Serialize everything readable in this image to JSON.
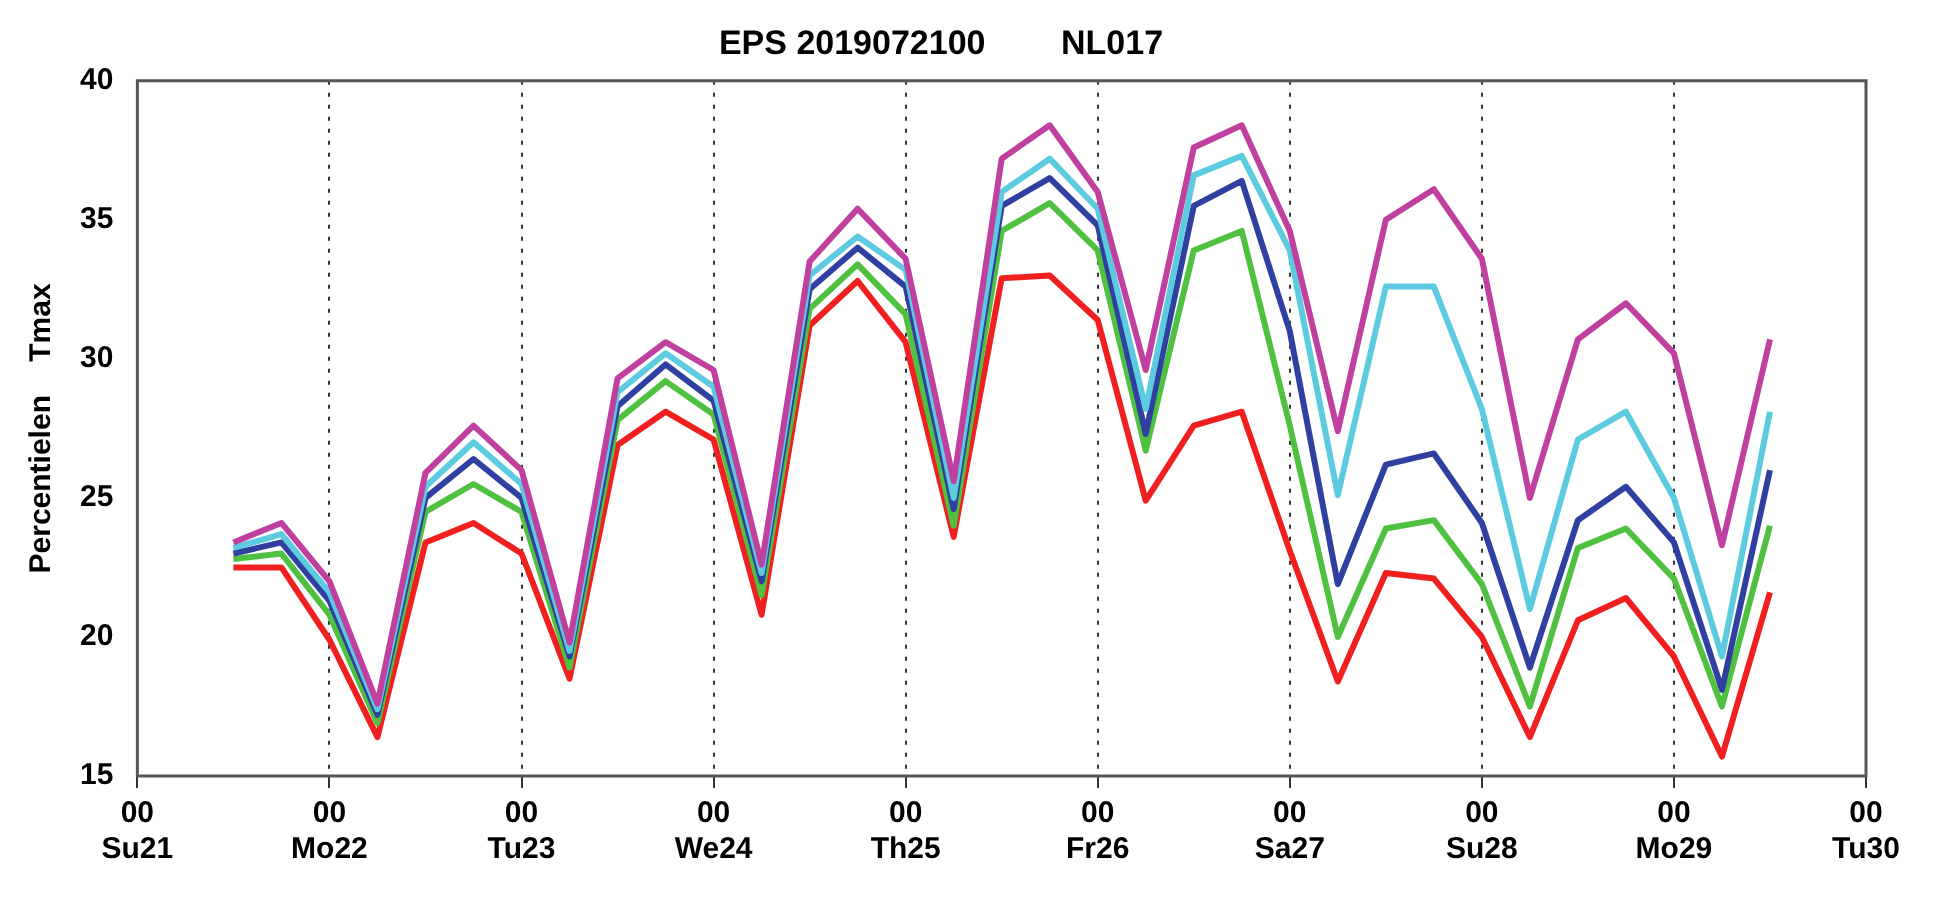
{
  "chart_data": {
    "type": "line",
    "title": "EPS 2019072100        NL017",
    "ylabel": "Percentielen    Tmax",
    "categories": [
      "00\nSu21",
      null,
      null,
      null,
      "00\nMo22",
      null,
      null,
      null,
      "00\nTu23",
      null,
      null,
      null,
      "00\nWe24",
      null,
      null,
      null,
      "00\nTh25",
      null,
      null,
      null,
      "00\nFr26",
      null,
      null,
      null,
      "00\nSa27",
      null,
      null,
      null,
      "00\nSu28",
      null,
      null,
      null,
      "00\nMo29",
      null,
      null,
      null,
      "00\nTu30"
    ],
    "series": [
      {
        "color": "#c040a0",
        "values": [
          null,
          null,
          23.4,
          24.1,
          22.0,
          17.6,
          25.9,
          27.6,
          26.0,
          19.8,
          29.3,
          30.6,
          29.6,
          22.6,
          33.5,
          35.4,
          33.6,
          25.6,
          37.2,
          38.4,
          36.0,
          29.6,
          37.6,
          38.4,
          34.6,
          27.4,
          35.0,
          36.1,
          33.6,
          25.0,
          30.7,
          32.0,
          30.2,
          23.3,
          30.7,
          null,
          null
        ]
      },
      {
        "color": "#5ccbe0",
        "values": [
          null,
          null,
          23.2,
          23.7,
          21.6,
          17.4,
          25.4,
          27.0,
          25.5,
          19.5,
          28.8,
          30.2,
          29.0,
          22.3,
          33.0,
          34.4,
          33.2,
          25.0,
          36.0,
          37.2,
          35.4,
          28.2,
          36.6,
          37.3,
          33.9,
          25.1,
          32.6,
          32.6,
          28.2,
          21.0,
          27.1,
          28.1,
          25.0,
          19.3,
          28.1,
          null,
          null
        ]
      },
      {
        "color": "#3040a0",
        "values": [
          null,
          null,
          23.0,
          23.4,
          21.3,
          17.2,
          25.0,
          26.4,
          25.0,
          19.3,
          28.3,
          29.8,
          28.5,
          22.0,
          32.5,
          34.0,
          32.6,
          24.6,
          35.5,
          36.5,
          34.8,
          27.3,
          35.5,
          36.4,
          31.0,
          21.9,
          26.2,
          26.6,
          24.1,
          18.9,
          24.2,
          25.4,
          23.4,
          18.1,
          26.0,
          null,
          null
        ]
      },
      {
        "color": "#50c040",
        "values": [
          null,
          null,
          22.8,
          23.0,
          20.8,
          16.9,
          24.5,
          25.5,
          24.5,
          18.9,
          27.8,
          29.2,
          28.0,
          21.5,
          31.8,
          33.4,
          31.6,
          24.0,
          34.6,
          35.6,
          33.9,
          26.7,
          33.9,
          34.6,
          27.6,
          20.0,
          23.9,
          24.2,
          21.9,
          17.5,
          23.2,
          23.9,
          22.1,
          17.5,
          24.0,
          null,
          null
        ]
      },
      {
        "color": "#f02020",
        "values": [
          null,
          null,
          22.5,
          22.5,
          19.9,
          16.4,
          23.4,
          24.1,
          23.0,
          18.5,
          26.9,
          28.1,
          27.1,
          20.8,
          31.2,
          32.8,
          30.6,
          23.6,
          32.9,
          33.0,
          31.4,
          24.9,
          27.6,
          28.1,
          23.1,
          18.4,
          22.3,
          22.1,
          20.0,
          16.4,
          20.6,
          21.4,
          19.3,
          15.7,
          21.6,
          null,
          null
        ]
      }
    ],
    "ylim": [
      15,
      40
    ],
    "yticks": [
      15,
      20,
      25,
      30,
      35,
      40
    ],
    "grid": "x",
    "legend": false,
    "marker": "none",
    "line_style": "solid"
  }
}
